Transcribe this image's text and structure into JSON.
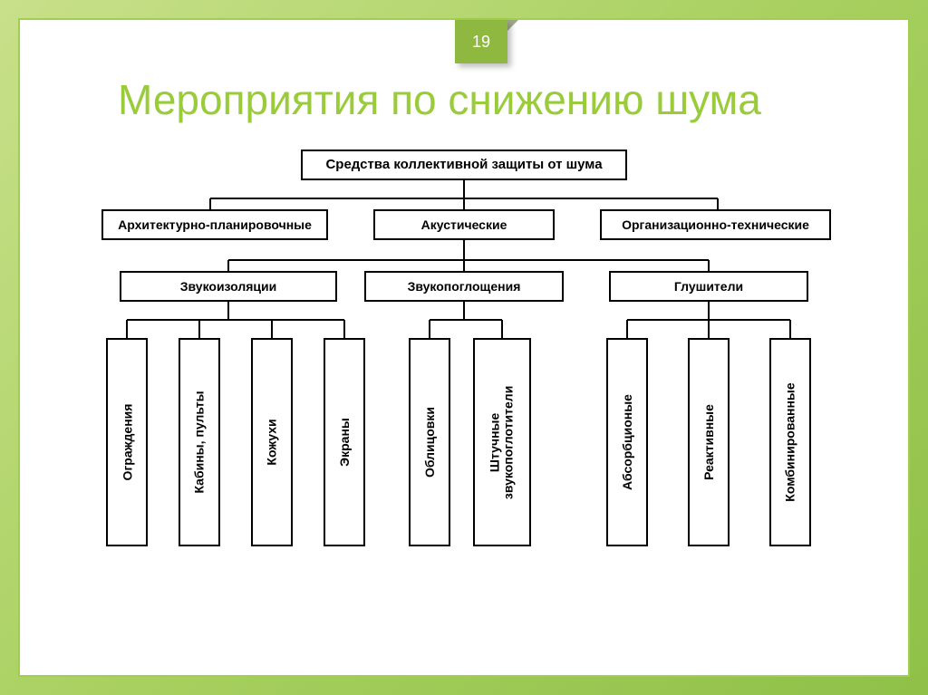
{
  "page_number": "19",
  "title": "Мероприятия по снижению шума",
  "title_color": "#9acb3b",
  "bg_gradient_from": "#c8e08a",
  "bg_gradient_to": "#8fc048",
  "slide_border": "#a0cf4f",
  "tab_bg": "#8fb840",
  "diagram": {
    "type": "tree",
    "font_family": "Arial",
    "node_border": "#000000",
    "node_bg": "#ffffff",
    "text_color": "#000000",
    "level0_fontsize": 15,
    "level1_fontsize": 14,
    "level2_fontsize": 14,
    "level3_fontsize": 14,
    "root": "Средства коллективной защиты от шума",
    "level1": [
      "Архитектурно-планировочные",
      "Акустические",
      "Организационно-технические"
    ],
    "level2": [
      "Звукоизоляции",
      "Звукопоглощения",
      "Глушители"
    ],
    "level3_groups": [
      [
        "Ограждения",
        "Кабины, пульты",
        "Кожухи",
        "Экраны"
      ],
      [
        "Облицовки",
        "Штучные звукопоглотители"
      ],
      [
        "Абсорбционые",
        "Реактивные",
        "Комбинированные"
      ]
    ]
  }
}
